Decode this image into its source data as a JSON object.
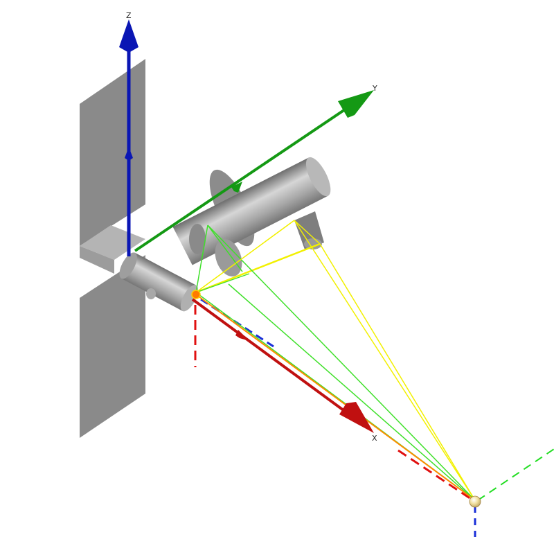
{
  "axes": {
    "z_label": "Z",
    "y_label": "Y",
    "x_label": "X"
  },
  "colors": {
    "z_axis": "#0a16b4",
    "y_axis": "#149914",
    "x_axis": "#c01010",
    "body_fill": "#8f8f8f",
    "body_light": "#c9c9c9",
    "plate_fill": "#8a8a8a",
    "ray_yellow": "#f2f000",
    "ray_green": "#3fe02a",
    "ray_orange": "#ff8c00",
    "guide_blue": "#1a2fd8",
    "guide_red": "#e01010",
    "guide_green": "#22dd22"
  }
}
